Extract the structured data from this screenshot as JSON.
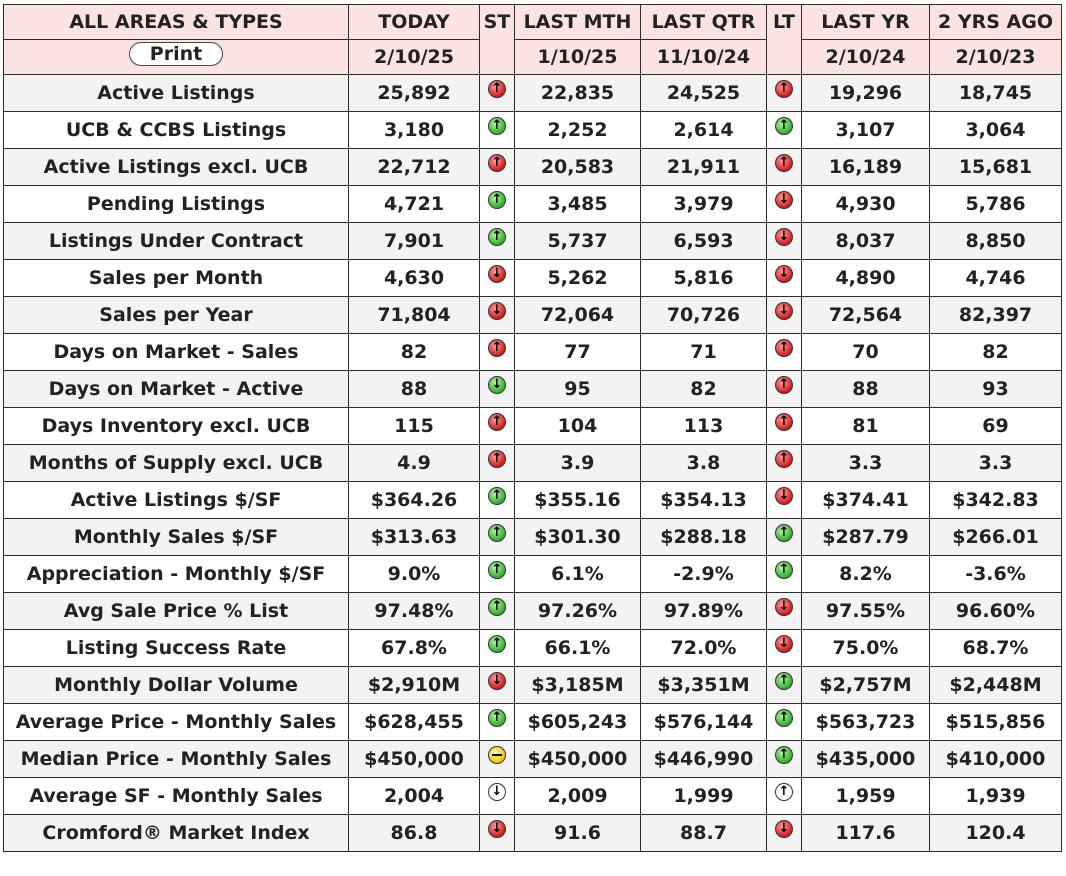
{
  "header": {
    "area_label": "ALL AREAS & TYPES",
    "print_label": "Print",
    "st_label": "ST",
    "lt_label": "LT",
    "columns": [
      {
        "label": "TODAY",
        "date": "2/10/25"
      },
      {
        "label": "LAST MTH",
        "date": "1/10/25"
      },
      {
        "label": "LAST QTR",
        "date": "11/10/24"
      },
      {
        "label": "LAST YR",
        "date": "2/10/24"
      },
      {
        "label": "2 YRS AGO",
        "date": "2/10/23"
      }
    ]
  },
  "indicator_colors": {
    "green": "#2fae2a",
    "red": "#d21a1a",
    "yellow": "#f0c400",
    "white": "#ffffff"
  },
  "rows": [
    {
      "label": "Active Listings",
      "today": "25,892",
      "st": "red-up",
      "last_mth": "22,835",
      "last_qtr": "24,525",
      "lt": "red-up",
      "last_yr": "19,296",
      "two_yrs": "18,745"
    },
    {
      "label": "UCB & CCBS Listings",
      "today": "3,180",
      "st": "green-up",
      "last_mth": "2,252",
      "last_qtr": "2,614",
      "lt": "green-up",
      "last_yr": "3,107",
      "two_yrs": "3,064"
    },
    {
      "label": "Active Listings excl. UCB",
      "today": "22,712",
      "st": "red-up",
      "last_mth": "20,583",
      "last_qtr": "21,911",
      "lt": "red-up",
      "last_yr": "16,189",
      "two_yrs": "15,681"
    },
    {
      "label": "Pending Listings",
      "today": "4,721",
      "st": "green-up",
      "last_mth": "3,485",
      "last_qtr": "3,979",
      "lt": "red-down",
      "last_yr": "4,930",
      "two_yrs": "5,786"
    },
    {
      "label": "Listings Under Contract",
      "today": "7,901",
      "st": "green-up",
      "last_mth": "5,737",
      "last_qtr": "6,593",
      "lt": "red-down",
      "last_yr": "8,037",
      "two_yrs": "8,850"
    },
    {
      "label": "Sales per Month",
      "today": "4,630",
      "st": "red-down",
      "last_mth": "5,262",
      "last_qtr": "5,816",
      "lt": "red-down",
      "last_yr": "4,890",
      "two_yrs": "4,746"
    },
    {
      "label": "Sales per Year",
      "today": "71,804",
      "st": "red-down",
      "last_mth": "72,064",
      "last_qtr": "70,726",
      "lt": "red-down",
      "last_yr": "72,564",
      "two_yrs": "82,397"
    },
    {
      "label": "Days on Market - Sales",
      "today": "82",
      "st": "red-up",
      "last_mth": "77",
      "last_qtr": "71",
      "lt": "red-up",
      "last_yr": "70",
      "two_yrs": "82"
    },
    {
      "label": "Days on Market - Active",
      "today": "88",
      "st": "green-down",
      "last_mth": "95",
      "last_qtr": "82",
      "lt": "red-up",
      "last_yr": "88",
      "two_yrs": "93"
    },
    {
      "label": "Days Inventory excl. UCB",
      "today": "115",
      "st": "red-up",
      "last_mth": "104",
      "last_qtr": "113",
      "lt": "red-up",
      "last_yr": "81",
      "two_yrs": "69"
    },
    {
      "label": "Months of Supply excl. UCB",
      "today": "4.9",
      "st": "red-up",
      "last_mth": "3.9",
      "last_qtr": "3.8",
      "lt": "red-up",
      "last_yr": "3.3",
      "two_yrs": "3.3"
    },
    {
      "label": "Active Listings $/SF",
      "today": "$364.26",
      "st": "green-up",
      "last_mth": "$355.16",
      "last_qtr": "$354.13",
      "lt": "red-down",
      "last_yr": "$374.41",
      "two_yrs": "$342.83"
    },
    {
      "label": "Monthly Sales $/SF",
      "today": "$313.63",
      "st": "green-up",
      "last_mth": "$301.30",
      "last_qtr": "$288.18",
      "lt": "green-up",
      "last_yr": "$287.79",
      "two_yrs": "$266.01"
    },
    {
      "label": "Appreciation - Monthly $/SF",
      "today": "9.0%",
      "st": "green-up",
      "last_mth": "6.1%",
      "last_qtr": "-2.9%",
      "lt": "green-up",
      "last_yr": "8.2%",
      "two_yrs": "-3.6%"
    },
    {
      "label": "Avg Sale Price % List",
      "today": "97.48%",
      "st": "green-up",
      "last_mth": "97.26%",
      "last_qtr": "97.89%",
      "lt": "red-down",
      "last_yr": "97.55%",
      "two_yrs": "96.60%"
    },
    {
      "label": "Listing Success Rate",
      "today": "67.8%",
      "st": "green-up",
      "last_mth": "66.1%",
      "last_qtr": "72.0%",
      "lt": "red-down",
      "last_yr": "75.0%",
      "two_yrs": "68.7%"
    },
    {
      "label": "Monthly Dollar Volume",
      "today": "$2,910M",
      "st": "red-down",
      "last_mth": "$3,185M",
      "last_qtr": "$3,351M",
      "lt": "green-up",
      "last_yr": "$2,757M",
      "two_yrs": "$2,448M"
    },
    {
      "label": "Average Price - Monthly Sales",
      "today": "$628,455",
      "st": "green-up",
      "last_mth": "$605,243",
      "last_qtr": "$576,144",
      "lt": "green-up",
      "last_yr": "$563,723",
      "two_yrs": "$515,856"
    },
    {
      "label": "Median Price - Monthly Sales",
      "today": "$450,000",
      "st": "yellow-flat",
      "last_mth": "$450,000",
      "last_qtr": "$446,990",
      "lt": "green-up",
      "last_yr": "$435,000",
      "two_yrs": "$410,000"
    },
    {
      "label": "Average SF - Monthly Sales",
      "today": "2,004",
      "st": "white-down",
      "last_mth": "2,009",
      "last_qtr": "1,999",
      "lt": "white-up",
      "last_yr": "1,959",
      "two_yrs": "1,939"
    },
    {
      "label": "Cromford® Market Index",
      "today": "86.8",
      "st": "red-down",
      "last_mth": "91.6",
      "last_qtr": "88.7",
      "lt": "red-down",
      "last_yr": "117.6",
      "two_yrs": "120.4"
    }
  ]
}
